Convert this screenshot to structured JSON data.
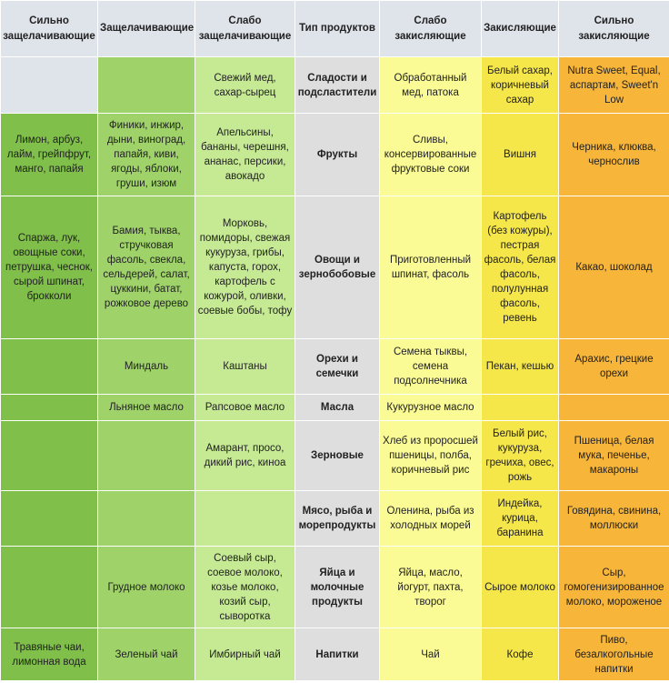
{
  "headers": [
    "Сильно защелачивающие",
    "Защелачивающие",
    "Слабо защелачивающие",
    "Тип продуктов",
    "Слабо закисляющие",
    "Закисляющие",
    "Сильно закисляющие"
  ],
  "rows": [
    [
      "",
      "",
      "Свежий мед, сахар-сырец",
      "Сладости и подсластители",
      "Обработанный мед, патока",
      "Белый сахар, коричневый сахар",
      "Nutra Sweet, Equal, аспартам, Sweet'n Low"
    ],
    [
      "Лимон, арбуз, лайм, грейпфрут, манго, папайя",
      "Финики, инжир, дыни, виноград, папайя, киви, ягоды, яблоки, груши, изюм",
      "Апельсины, бананы, черешня, ананас, персики, авокадо",
      "Фрукты",
      "Сливы, консервированные фруктовые соки",
      "Вишня",
      "Черника, клюква, чернослив"
    ],
    [
      "Спаржа, лук, овощные соки, петрушка, чеснок, сырой шпинат, брокколи",
      "Бамия, тыква, стручковая фасоль, свекла, сельдерей, салат, цуккини, батат, рожковое дерево",
      "Морковь, помидоры, свежая кукуруза, грибы, капуста, горох, картофель с кожурой, оливки, соевые бобы, тофу",
      "Овощи и зернобобовые",
      "Приготовленный шпинат, фасоль",
      "Картофель (без кожуры), пестрая фасоль, белая фасоль, полулунная фасоль, ревень",
      "Какао, шоколад"
    ],
    [
      "",
      "Миндаль",
      "Каштаны",
      "Орехи и семечки",
      "Семена тыквы, семена подсолнечника",
      "Пекан, кешью",
      "Арахис, грецкие орехи"
    ],
    [
      "",
      "Льняное масло",
      "Рапсовое масло",
      "Масла",
      "Кукурузное масло",
      "",
      ""
    ],
    [
      "",
      "",
      "Амарант, просо, дикий рис, киноа",
      "Зерновые",
      "Хлеб из проросшей пшеницы, полба, коричневый рис",
      "Белый рис, кукуруза, гречиха, овес, рожь",
      "Пшеница, белая мука, печенье, макароны"
    ],
    [
      "",
      "",
      "",
      "Мясо, рыба и морепродукты",
      "Оленина, рыба из холодных морей",
      "Индейка, курица, баранина",
      "Говядина, свинина, моллюски"
    ],
    [
      "",
      "Грудное молоко",
      "Соевый сыр, соевое молоко, козье молоко, козий сыр, сыворотка",
      "Яйца и молочные продукты",
      "Яйца, масло, йогурт, пахта, творог",
      "Сырое молоко",
      "Сыр, гомогенизированное молоко, мороженое"
    ],
    [
      "Травяные чаи, лимонная вода",
      "Зеленый чай",
      "Имбирный чай",
      "Напитки",
      "Чай",
      "Кофе",
      "Пиво, безалкогольные напитки"
    ]
  ]
}
